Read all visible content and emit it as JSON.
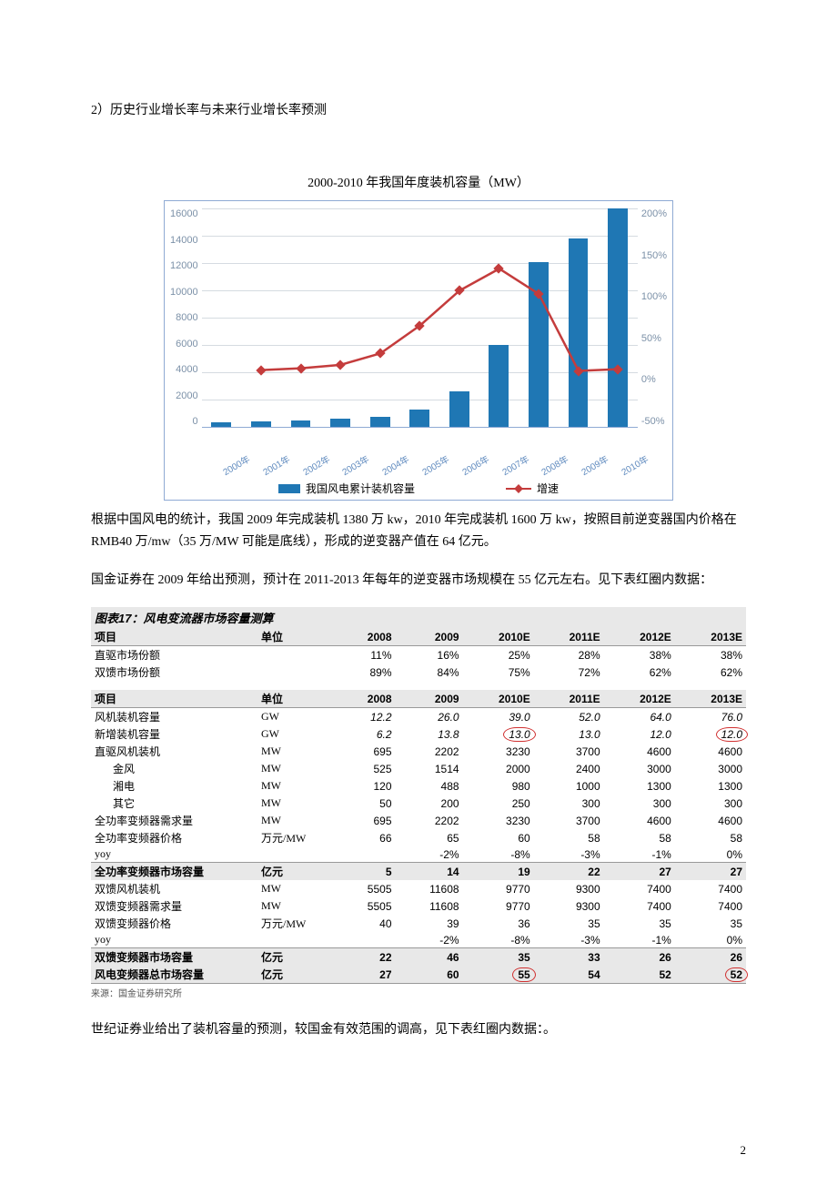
{
  "heading": "2）历史行业增长率与未来行业增长率预测",
  "chart": {
    "title": "2000-2010 年我国年度装机容量（MW）",
    "type": "bar+line dual-axis",
    "categories": [
      "2000年",
      "2001年",
      "2002年",
      "2003年",
      "2004年",
      "2005年",
      "2006年",
      "2007年",
      "2008年",
      "2009年",
      "2010年"
    ],
    "bar_values_mw": [
      350,
      400,
      470,
      570,
      760,
      1260,
      2600,
      6000,
      12100,
      13800,
      16000
    ],
    "line_values_pct": [
      null,
      15,
      17,
      21,
      34,
      66,
      106,
      131,
      102,
      14,
      16
    ],
    "left_ticks": [
      16000,
      14000,
      12000,
      10000,
      8000,
      6000,
      4000,
      2000,
      0
    ],
    "left_max": 16000,
    "right_ticks": [
      "200%",
      "150%",
      "100%",
      "50%",
      "0%",
      "-50%"
    ],
    "right_min": -50,
    "right_max": 200,
    "bar_color": "#1f77b4",
    "line_color": "#c43c3c",
    "axis_label_color": "#7c91a8",
    "border_color": "#8faad4",
    "grid_color": "#d5dbe1",
    "legend_bar": "我国风电累计装机容量",
    "legend_line": "增速"
  },
  "para1": "根据中国风电的统计，我国 2009 年完成装机 1380 万 kw，2010 年完成装机 1600 万 kw，按照目前逆变器国内价格在 RMB40 万/mw（35 万/MW 可能是底线），形成的逆变器产值在 64 亿元。",
  "para2": "国金证券在 2009 年给出预测，预计在 2011-2013 年每年的逆变器市场规模在 55 亿元左右。见下表红圈内数据：",
  "table_title": "图表17：风电变流器市场容量测算",
  "years": [
    "2008",
    "2009",
    "2010E",
    "2011E",
    "2012E",
    "2013E"
  ],
  "hdr_item": "项目",
  "hdr_unit": "单位",
  "share_rows": [
    {
      "label": "直驱市场份额",
      "unit": "",
      "vals": [
        "11%",
        "16%",
        "25%",
        "28%",
        "38%",
        "38%"
      ]
    },
    {
      "label": "双馈市场份额",
      "unit": "",
      "vals": [
        "89%",
        "84%",
        "75%",
        "72%",
        "62%",
        "62%"
      ]
    }
  ],
  "body_rows": [
    {
      "label": "风机装机容量",
      "unit": "GW",
      "vals": [
        "12.2",
        "26.0",
        "39.0",
        "52.0",
        "64.0",
        "76.0"
      ],
      "ital": true
    },
    {
      "label": "新增装机容量",
      "unit": "GW",
      "vals": [
        "6.2",
        "13.8",
        "13.0",
        "13.0",
        "12.0",
        "12.0"
      ],
      "ital": true,
      "circle_cols": [
        2,
        5
      ]
    },
    {
      "label": "直驱风机装机",
      "unit": "MW",
      "vals": [
        "695",
        "2202",
        "3230",
        "3700",
        "4600",
        "4600"
      ]
    },
    {
      "label": "金风",
      "unit": "MW",
      "vals": [
        "525",
        "1514",
        "2000",
        "2400",
        "3000",
        "3000"
      ],
      "indent": true
    },
    {
      "label": "湘电",
      "unit": "MW",
      "vals": [
        "120",
        "488",
        "980",
        "1000",
        "1300",
        "1300"
      ],
      "indent": true
    },
    {
      "label": "其它",
      "unit": "MW",
      "vals": [
        "50",
        "200",
        "250",
        "300",
        "300",
        "300"
      ],
      "indent": true
    },
    {
      "label": "全功率变频器需求量",
      "unit": "MW",
      "vals": [
        "695",
        "2202",
        "3230",
        "3700",
        "4600",
        "4600"
      ]
    },
    {
      "label": "全功率变频器价格",
      "unit": "万元/MW",
      "vals": [
        "66",
        "65",
        "60",
        "58",
        "58",
        "58"
      ]
    },
    {
      "label": "yoy",
      "unit": "",
      "vals": [
        "",
        "-2%",
        "-8%",
        "-3%",
        "-1%",
        "0%"
      ],
      "sep": true
    },
    {
      "label": "全功率变频器市场容量",
      "unit": "亿元",
      "vals": [
        "5",
        "14",
        "19",
        "22",
        "27",
        "27"
      ],
      "shade": true,
      "bold": true
    },
    {
      "label": "双馈风机装机",
      "unit": "MW",
      "vals": [
        "5505",
        "11608",
        "9770",
        "9300",
        "7400",
        "7400"
      ]
    },
    {
      "label": "双馈变频器需求量",
      "unit": "MW",
      "vals": [
        "5505",
        "11608",
        "9770",
        "9300",
        "7400",
        "7400"
      ]
    },
    {
      "label": "双馈变频器价格",
      "unit": "万元/MW",
      "vals": [
        "40",
        "39",
        "36",
        "35",
        "35",
        "35"
      ]
    },
    {
      "label": "yoy",
      "unit": "",
      "vals": [
        "",
        "-2%",
        "-8%",
        "-3%",
        "-1%",
        "0%"
      ],
      "sep": true
    },
    {
      "label": "双馈变频器市场容量",
      "unit": "亿元",
      "vals": [
        "22",
        "46",
        "35",
        "33",
        "26",
        "26"
      ],
      "shade": true,
      "bold": true
    },
    {
      "label": "风电变频器总市场容量",
      "unit": "亿元",
      "vals": [
        "27",
        "60",
        "55",
        "54",
        "52",
        "52"
      ],
      "shade": true,
      "bold": true,
      "circle_cols": [
        2,
        5
      ]
    }
  ],
  "source": "来源：国金证券研究所",
  "para3": "世纪证券业给出了装机容量的预测，较国金有效范围的调高，见下表红圈内数据：。",
  "page_number": "2"
}
